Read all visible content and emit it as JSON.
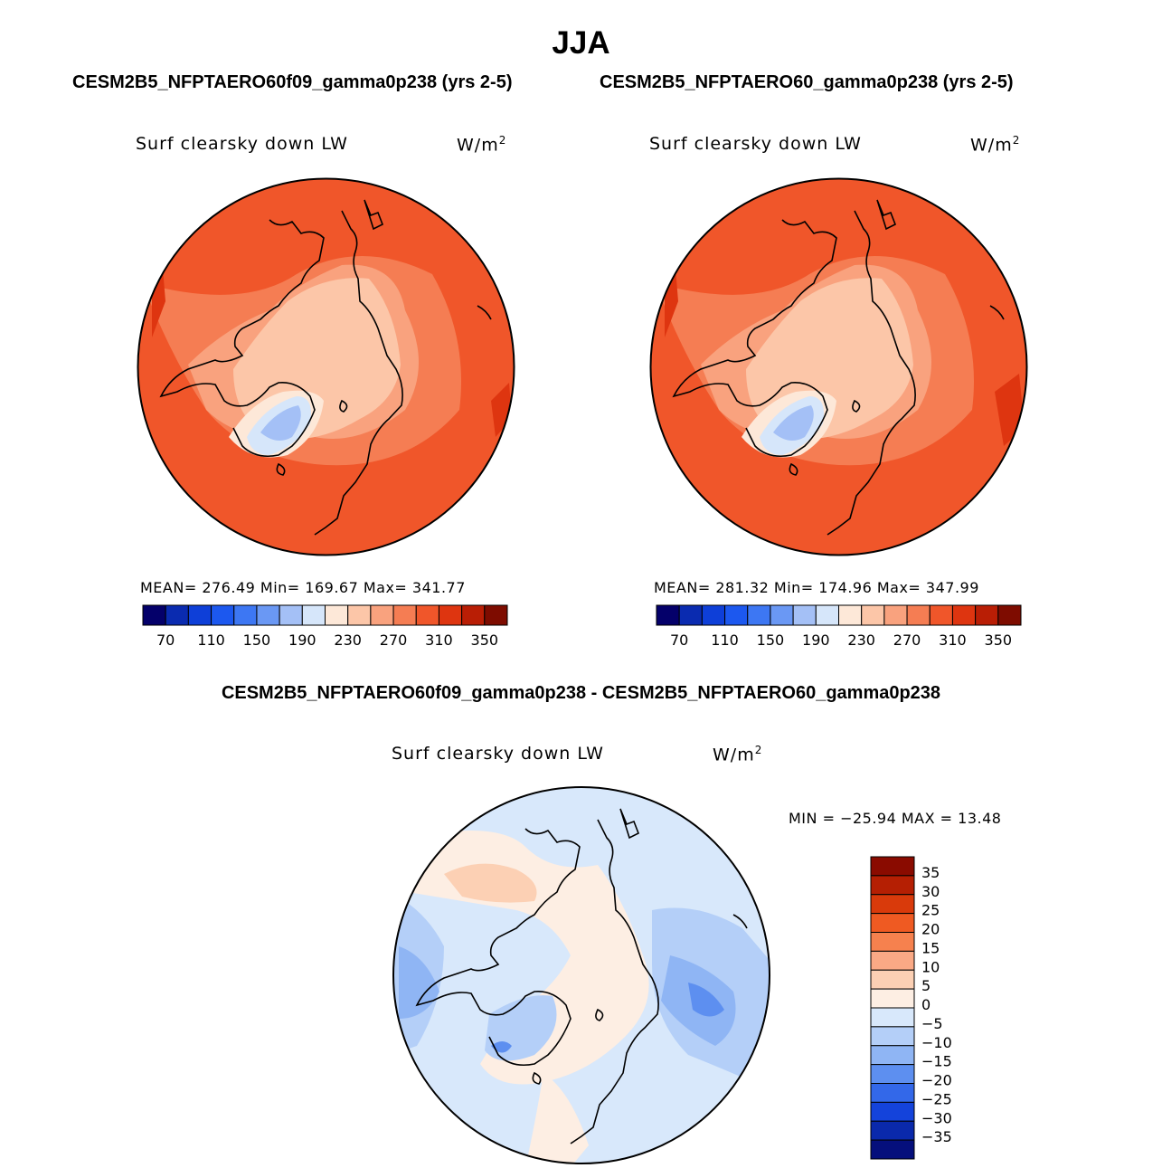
{
  "figure": {
    "season": "JJA",
    "diff_title": "CESM2B5_NFPTAERO60f09_gamma0p238 - CESM2B5_NFPTAERO60_gamma0p238"
  },
  "panels": [
    {
      "case_title": "CESM2B5_NFPTAERO60f09_gamma0p238 (yrs 2-5)",
      "variable": "Surf clearsky down LW",
      "units": "W/m",
      "units_sup": "2",
      "stats": "MEAN= 276.49   Min= 169.67   Max= 341.77"
    },
    {
      "case_title": "CESM2B5_NFPTAERO60_gamma0p238 (yrs 2-5)",
      "variable": "Surf clearsky down LW",
      "units": "W/m",
      "units_sup": "2",
      "stats": "MEAN= 281.32   Min= 174.96   Max= 347.99"
    }
  ],
  "diff_panel": {
    "variable": "Surf clearsky down LW",
    "units": "W/m",
    "units_sup": "2",
    "stats": "MIN = −25.94 MAX =  13.48"
  },
  "chart_data": [
    {
      "type": "heatmap",
      "projection": "north-polar-stereographic",
      "title": "CESM2B5_NFPTAERO60f09_gamma0p238 (yrs 2-5)",
      "variable": "Surf clearsky down LW",
      "units": "W/m2",
      "mean": 276.49,
      "min": 169.67,
      "max": 341.77,
      "colorbar_ticks": [
        70,
        110,
        150,
        190,
        230,
        270,
        310,
        350
      ],
      "colorbar_colors": [
        "#04006a",
        "#0a2bb0",
        "#0e3fd8",
        "#1c58ef",
        "#3d77f3",
        "#6a98f4",
        "#a4c0f6",
        "#d6e6fa",
        "#fde8d8",
        "#fcc6a8",
        "#f9a27e",
        "#f57d53",
        "#f0562a",
        "#de3510",
        "#b91e05",
        "#7e0c00"
      ]
    },
    {
      "type": "heatmap",
      "projection": "north-polar-stereographic",
      "title": "CESM2B5_NFPTAERO60_gamma0p238 (yrs 2-5)",
      "variable": "Surf clearsky down LW",
      "units": "W/m2",
      "mean": 281.32,
      "min": 174.96,
      "max": 347.99,
      "colorbar_ticks": [
        70,
        110,
        150,
        190,
        230,
        270,
        310,
        350
      ],
      "colorbar_colors": [
        "#04006a",
        "#0a2bb0",
        "#0e3fd8",
        "#1c58ef",
        "#3d77f3",
        "#6a98f4",
        "#a4c0f6",
        "#d6e6fa",
        "#fde8d8",
        "#fcc6a8",
        "#f9a27e",
        "#f57d53",
        "#f0562a",
        "#de3510",
        "#b91e05",
        "#7e0c00"
      ]
    },
    {
      "type": "heatmap",
      "projection": "north-polar-stereographic",
      "title": "CESM2B5_NFPTAERO60f09_gamma0p238 - CESM2B5_NFPTAERO60_gamma0p238",
      "variable": "Surf clearsky down LW",
      "units": "W/m2",
      "min": -25.94,
      "max": 13.48,
      "colorbar_levels": [
        35,
        30,
        25,
        20,
        15,
        10,
        5,
        0,
        -5,
        -10,
        -15,
        -20,
        -25,
        -30,
        -35
      ],
      "colorbar_labels": [
        "35",
        "30",
        "25",
        "20",
        "15",
        "10",
        "5",
        "0",
        "−5",
        "−10",
        "−15",
        "−20",
        "−25",
        "−30",
        "−35"
      ],
      "colorbar_colors": [
        "#8a0b00",
        "#b51f03",
        "#d93a0b",
        "#ef5a22",
        "#f6814e",
        "#faa985",
        "#fcd0b4",
        "#fdeee3",
        "#d8e8fb",
        "#b4cff8",
        "#8fb5f4",
        "#5d8ff0",
        "#3368e9",
        "#1443db",
        "#0a29ab",
        "#050f7c"
      ]
    }
  ]
}
